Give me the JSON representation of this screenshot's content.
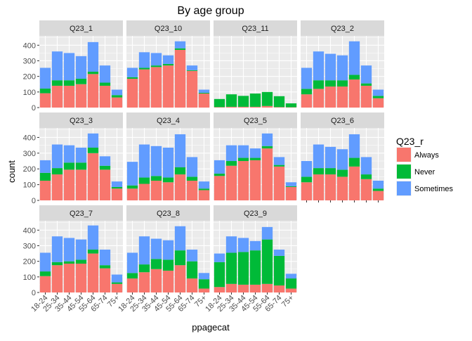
{
  "chart_data": {
    "type": "bar",
    "stacked": true,
    "title": "By age group",
    "xlabel": "ppagecat",
    "ylabel": "count",
    "ylim": [
      0,
      460
    ],
    "yticks": [
      0,
      100,
      200,
      300,
      400
    ],
    "categories": [
      "18-24",
      "25-34",
      "35-44",
      "45-54",
      "55-64",
      "65-74",
      "75+"
    ],
    "legend": {
      "title": "Q23_r",
      "position": "right",
      "entries": [
        {
          "name": "Always",
          "color": "#F8766D"
        },
        {
          "name": "Never",
          "color": "#00BA38"
        },
        {
          "name": "Sometimes",
          "color": "#619CFF"
        }
      ]
    },
    "panels": [
      {
        "name": "Q23_1",
        "series": [
          {
            "name": "Always",
            "values": [
              92,
              140,
              140,
              150,
              215,
              140,
              65
            ]
          },
          {
            "name": "Never",
            "values": [
              30,
              35,
              35,
              35,
              15,
              20,
              15
            ]
          },
          {
            "name": "Sometimes",
            "values": [
              133,
              185,
              175,
              145,
              190,
              110,
              35
            ]
          }
        ]
      },
      {
        "name": "Q23_10",
        "series": [
          {
            "name": "Always",
            "values": [
              185,
              245,
              260,
              270,
              370,
              235,
              90
            ]
          },
          {
            "name": "Never",
            "values": [
              10,
              10,
              10,
              10,
              10,
              5,
              5
            ]
          },
          {
            "name": "Sometimes",
            "values": [
              60,
              100,
              80,
              55,
              45,
              30,
              20
            ]
          }
        ]
      },
      {
        "name": "Q23_11",
        "series": [
          {
            "name": "Always",
            "values": [
              3,
              5,
              5,
              5,
              10,
              3,
              2
            ]
          },
          {
            "name": "Never",
            "values": [
              52,
              80,
              70,
              85,
              90,
              70,
              25
            ]
          },
          {
            "name": "Sometimes",
            "values": [
              0,
              0,
              0,
              0,
              0,
              0,
              0
            ]
          }
        ]
      },
      {
        "name": "Q23_2",
        "series": [
          {
            "name": "Always",
            "values": [
              85,
              120,
              135,
              135,
              180,
              140,
              60
            ]
          },
          {
            "name": "Never",
            "values": [
              35,
              55,
              40,
              40,
              30,
              15,
              15
            ]
          },
          {
            "name": "Sometimes",
            "values": [
              135,
              185,
              170,
              160,
              215,
              115,
              40
            ]
          }
        ]
      },
      {
        "name": "Q23_3",
        "series": [
          {
            "name": "Always",
            "values": [
              125,
              165,
              195,
              195,
              300,
              195,
              75
            ]
          },
          {
            "name": "Never",
            "values": [
              50,
              40,
              45,
              45,
              35,
              25,
              10
            ]
          },
          {
            "name": "Sometimes",
            "values": [
              80,
              150,
              110,
              95,
              90,
              60,
              35
            ]
          }
        ]
      },
      {
        "name": "Q23_4",
        "series": [
          {
            "name": "Always",
            "values": [
              75,
              105,
              125,
              115,
              165,
              125,
              65
            ]
          },
          {
            "name": "Never",
            "values": [
              20,
              40,
              30,
              30,
              45,
              25,
              10
            ]
          },
          {
            "name": "Sometimes",
            "values": [
              150,
              210,
              190,
              190,
              210,
              125,
              45
            ]
          }
        ]
      },
      {
        "name": "Q23_5",
        "series": [
          {
            "name": "Always",
            "values": [
              155,
              220,
              250,
              255,
              330,
              215,
              85
            ]
          },
          {
            "name": "Never",
            "values": [
              15,
              30,
              20,
              15,
              15,
              10,
              5
            ]
          },
          {
            "name": "Sometimes",
            "values": [
              85,
              100,
              80,
              60,
              80,
              50,
              25
            ]
          }
        ]
      },
      {
        "name": "Q23_6",
        "series": [
          {
            "name": "Always",
            "values": [
              115,
              165,
              165,
              150,
              215,
              135,
              60
            ]
          },
          {
            "name": "Never",
            "values": [
              35,
              40,
              40,
              45,
              55,
              30,
              15
            ]
          },
          {
            "name": "Sometimes",
            "values": [
              100,
              150,
              135,
              130,
              150,
              110,
              50
            ]
          }
        ]
      },
      {
        "name": "Q23_7",
        "series": [
          {
            "name": "Always",
            "values": [
              105,
              175,
              185,
              185,
              250,
              155,
              55
            ]
          },
          {
            "name": "Never",
            "values": [
              30,
              20,
              15,
              25,
              25,
              20,
              10
            ]
          },
          {
            "name": "Sometimes",
            "values": [
              120,
              165,
              150,
              130,
              155,
              100,
              50
            ]
          }
        ]
      },
      {
        "name": "Q23_8",
        "series": [
          {
            "name": "Always",
            "values": [
              90,
              130,
              150,
              140,
              175,
              90,
              25
            ]
          },
          {
            "name": "Never",
            "values": [
              35,
              50,
              65,
              70,
              95,
              110,
              60
            ]
          },
          {
            "name": "Sometimes",
            "values": [
              130,
              180,
              130,
              125,
              155,
              75,
              40
            ]
          }
        ]
      },
      {
        "name": "Q23_9",
        "series": [
          {
            "name": "Always",
            "values": [
              35,
              55,
              50,
              50,
              55,
              45,
              25
            ]
          },
          {
            "name": "Never",
            "values": [
              160,
              200,
              210,
              220,
              285,
              190,
              65
            ]
          },
          {
            "name": "Sometimes",
            "values": [
              55,
              105,
              90,
              60,
              80,
              40,
              30
            ]
          }
        ]
      }
    ]
  }
}
